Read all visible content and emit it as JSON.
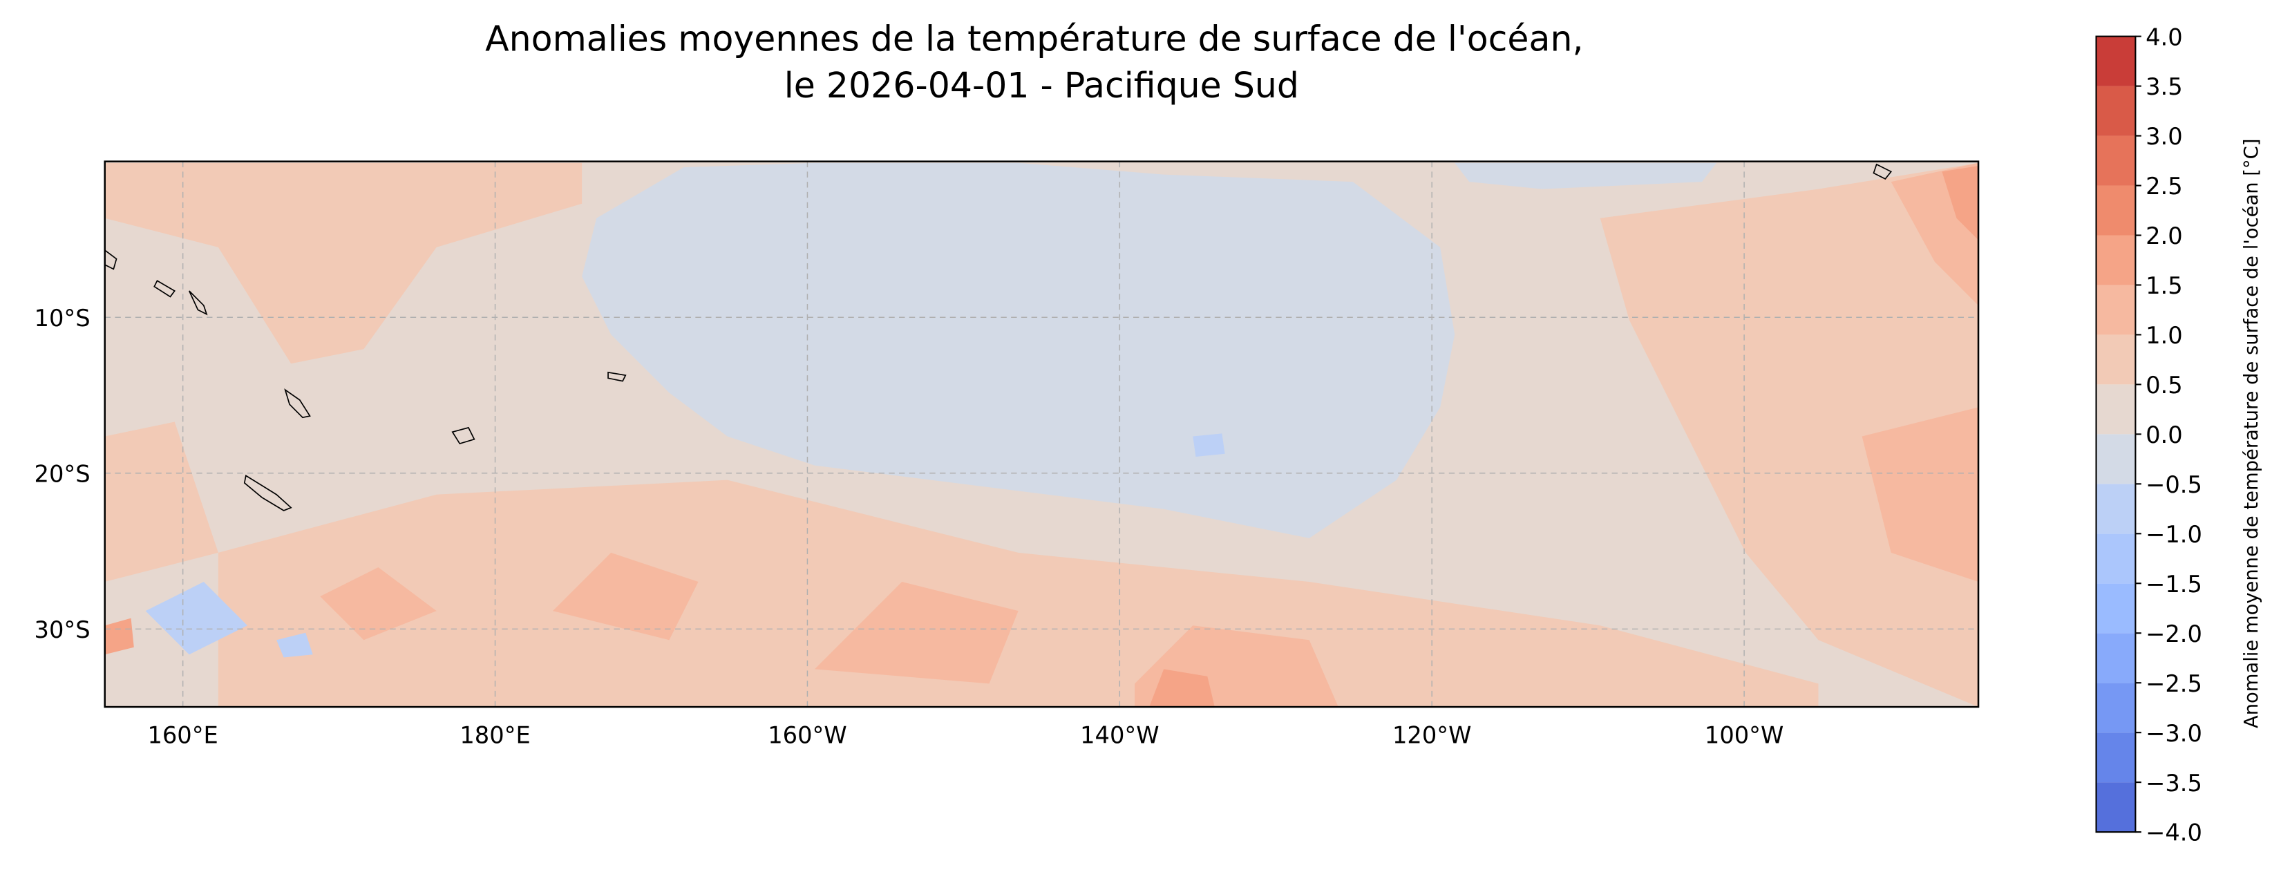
{
  "title": [
    "Anomalies moyennes de la température de surface de l'océan,",
    "le 2026-04-01 - Pacifique Sud"
  ],
  "map": {
    "xlim": [
      155,
      275
    ],
    "ylim": [
      -35,
      0
    ],
    "grid": true,
    "xticks": [
      {
        "value": 160,
        "label": "160°E"
      },
      {
        "value": 180,
        "label": "180°E"
      },
      {
        "value": 200,
        "label": "160°W"
      },
      {
        "value": 220,
        "label": "140°W"
      },
      {
        "value": 240,
        "label": "120°W"
      },
      {
        "value": 260,
        "label": "100°W"
      }
    ],
    "yticks": [
      {
        "value": -10,
        "label": "10°S"
      },
      {
        "value": -20,
        "label": "20°S"
      },
      {
        "value": -30,
        "label": "30°S"
      }
    ]
  },
  "colorbar": {
    "label": "Anomalie moyenne de température de surface de l'océan [°C]",
    "lim": [
      -4,
      4
    ],
    "ticks": [
      {
        "value": -4,
        "label": "−4.0"
      },
      {
        "value": -3.5,
        "label": "−3.5"
      },
      {
        "value": -3,
        "label": "−3.0"
      },
      {
        "value": -2.5,
        "label": "−2.5"
      },
      {
        "value": -2,
        "label": "−2.0"
      },
      {
        "value": -1.5,
        "label": "−1.5"
      },
      {
        "value": -1,
        "label": "−1.0"
      },
      {
        "value": -0.5,
        "label": "−0.5"
      },
      {
        "value": 0,
        "label": "0.0"
      },
      {
        "value": 0.5,
        "label": "0.5"
      },
      {
        "value": 1,
        "label": "1.0"
      },
      {
        "value": 1.5,
        "label": "1.5"
      },
      {
        "value": 2,
        "label": "2.0"
      },
      {
        "value": 2.5,
        "label": "2.5"
      },
      {
        "value": 3,
        "label": "3.0"
      },
      {
        "value": 3.5,
        "label": "3.5"
      },
      {
        "value": 4,
        "label": "4.0"
      }
    ],
    "colors": [
      "#5570dc",
      "#6585ea",
      "#7698f4",
      "#88aafb",
      "#9abbff",
      "#abc6fc",
      "#bcd0f6",
      "#d3dae6",
      "#e6d8d0",
      "#f2cab6",
      "#f6b9a0",
      "#f5a487",
      "#ef8b6d",
      "#e6735a",
      "#d95a48",
      "#c93d38"
    ]
  }
}
